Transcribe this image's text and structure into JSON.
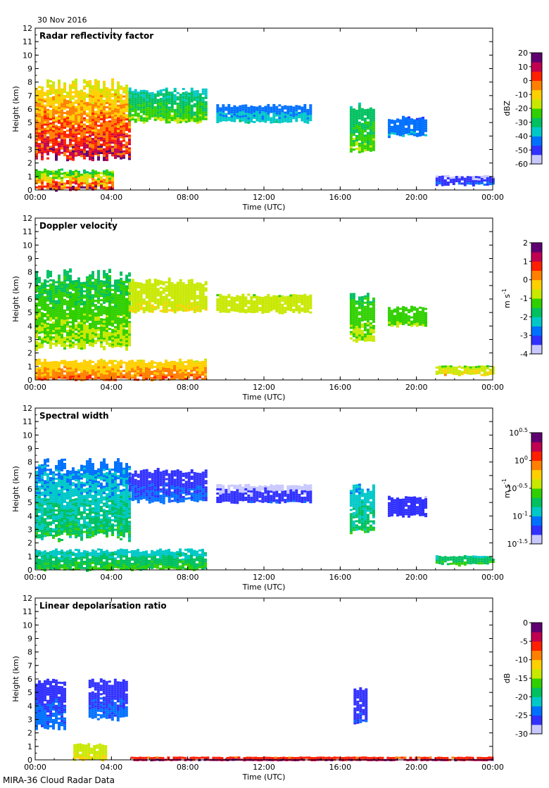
{
  "date": "30 Nov 2016",
  "footer": "MIRA-36 Cloud Radar Data",
  "colors": {
    "axis": "#000000",
    "background": "#ffffff",
    "colormap": [
      "#c8c8ff",
      "#3030ff",
      "#0070ff",
      "#00c8c8",
      "#00c060",
      "#30d000",
      "#c8e800",
      "#ffd000",
      "#ff8000",
      "#ff2000",
      "#c00050",
      "#600070"
    ]
  },
  "chart_data": [
    {
      "type": "heatmap",
      "title": "Radar reflectivity factor",
      "xlabel": "Time (UTC)",
      "ylabel": "Height (km)",
      "xlim": [
        0,
        24
      ],
      "ylim": [
        0,
        12
      ],
      "x_ticks": [
        "00:00",
        "04:00",
        "08:00",
        "12:00",
        "16:00",
        "20:00",
        "00:00"
      ],
      "y_ticks": [
        "0",
        "1",
        "2",
        "3",
        "4",
        "5",
        "6",
        "7",
        "8",
        "9",
        "10",
        "11",
        "12"
      ],
      "colorbar": {
        "label": "dBZ",
        "range": [
          -60,
          20
        ],
        "ticks": [
          "20",
          "10",
          "0",
          "-10",
          "-20",
          "-30",
          "-40",
          "-50",
          "-60"
        ]
      },
      "regions": [
        {
          "t": [
            0,
            4.9
          ],
          "h": [
            2.2,
            8.3
          ],
          "v": [
            -30,
            10
          ],
          "desc": "deep ice cloud 00-05 UTC"
        },
        {
          "t": [
            4.9,
            9.0
          ],
          "h": [
            5.0,
            7.6
          ],
          "v": [
            -45,
            -20
          ],
          "desc": "ice cloud top 05-09 UTC"
        },
        {
          "t": [
            9.5,
            14.5
          ],
          "h": [
            5.0,
            6.4
          ],
          "v": [
            -50,
            -35
          ],
          "desc": "thin ice layer 10-14 UTC"
        },
        {
          "t": [
            16.5,
            17.8
          ],
          "h": [
            2.7,
            6.5
          ],
          "v": [
            -40,
            -20
          ],
          "desc": "cell near 17 UTC"
        },
        {
          "t": [
            18.5,
            20.5
          ],
          "h": [
            4.0,
            5.5
          ],
          "v": [
            -50,
            -40
          ],
          "desc": "patches 19-20 UTC"
        },
        {
          "t": [
            0,
            4.0
          ],
          "h": [
            0,
            1.6
          ],
          "v": [
            -50,
            10
          ],
          "desc": "low-level echo 00-04 UTC"
        },
        {
          "t": [
            21.0,
            24.0
          ],
          "h": [
            0.4,
            1.1
          ],
          "v": [
            -60,
            -45
          ],
          "desc": "low cloud 21-24 UTC"
        }
      ]
    },
    {
      "type": "heatmap",
      "title": "Doppler velocity",
      "xlabel": "Time (UTC)",
      "ylabel": "Height (km)",
      "xlim": [
        0,
        24
      ],
      "ylim": [
        0,
        12
      ],
      "x_ticks": [
        "00:00",
        "04:00",
        "08:00",
        "12:00",
        "16:00",
        "20:00",
        "00:00"
      ],
      "y_ticks": [
        "0",
        "1",
        "2",
        "3",
        "4",
        "5",
        "6",
        "7",
        "8",
        "9",
        "10",
        "11",
        "12"
      ],
      "colorbar": {
        "label": "m s",
        "label_superscript": "-1",
        "range": [
          -4,
          2
        ],
        "ticks": [
          "2",
          "1",
          "0",
          "-1",
          "-2",
          "-3",
          "-4"
        ]
      },
      "regions": [
        {
          "t": [
            0,
            4.9
          ],
          "h": [
            2.2,
            8.3
          ],
          "v": [
            -2.2,
            -0.8
          ],
          "desc": "falling ice 00-05 UTC"
        },
        {
          "t": [
            4.9,
            9.0
          ],
          "h": [
            5.0,
            7.6
          ],
          "v": [
            -1.2,
            -0.5
          ],
          "desc": "ice cloud top 05-09 UTC"
        },
        {
          "t": [
            9.5,
            14.5
          ],
          "h": [
            5.0,
            6.4
          ],
          "v": [
            -1.2,
            -0.6
          ],
          "desc": "thin ice layer 10-14 UTC"
        },
        {
          "t": [
            16.5,
            17.8
          ],
          "h": [
            2.7,
            6.5
          ],
          "v": [
            -2.0,
            -0.8
          ],
          "desc": "cell near 17 UTC"
        },
        {
          "t": [
            18.5,
            20.5
          ],
          "h": [
            4.0,
            5.5
          ],
          "v": [
            -1.5,
            -1.0
          ],
          "desc": "patches 19-20 UTC"
        },
        {
          "t": [
            0,
            9.0
          ],
          "h": [
            0,
            1.6
          ],
          "v": [
            -1.0,
            0.5
          ],
          "desc": "low-level echo"
        },
        {
          "t": [
            21.0,
            24.0
          ],
          "h": [
            0.4,
            1.1
          ],
          "v": [
            -1.5,
            -0.2
          ],
          "desc": "low cloud 21-24 UTC"
        }
      ]
    },
    {
      "type": "heatmap",
      "title": "Spectral width",
      "xlabel": "Time (UTC)",
      "ylabel": "Height (km)",
      "xlim": [
        0,
        24
      ],
      "ylim": [
        0,
        12
      ],
      "x_ticks": [
        "00:00",
        "04:00",
        "08:00",
        "12:00",
        "16:00",
        "20:00",
        "00:00"
      ],
      "y_ticks": [
        "0",
        "1",
        "2",
        "3",
        "4",
        "5",
        "6",
        "7",
        "8",
        "9",
        "10",
        "11",
        "12"
      ],
      "colorbar": {
        "label": "m s",
        "label_superscript": "-1",
        "scale": "log",
        "range": [
          -1.5,
          0.5
        ],
        "ticks": [
          "10^0.5",
          "10^0",
          "10^-0.5",
          "10^-1",
          "10^-1.5"
        ]
      },
      "regions": [
        {
          "t": [
            0,
            4.9
          ],
          "h": [
            2.2,
            8.3
          ],
          "v": [
            -1.3,
            -0.7
          ],
          "desc": "ice cloud 00-05 UTC"
        },
        {
          "t": [
            4.9,
            9.0
          ],
          "h": [
            5.0,
            7.6
          ],
          "v": [
            -1.4,
            -1.1
          ],
          "desc": "ice cloud top 05-09 UTC"
        },
        {
          "t": [
            9.5,
            14.5
          ],
          "h": [
            5.0,
            6.4
          ],
          "v": [
            -1.5,
            -1.2
          ],
          "desc": "thin ice layer 10-14 UTC"
        },
        {
          "t": [
            16.5,
            17.8
          ],
          "h": [
            2.7,
            6.5
          ],
          "v": [
            -1.2,
            -0.7
          ],
          "desc": "cell near 17 UTC"
        },
        {
          "t": [
            18.5,
            20.5
          ],
          "h": [
            4.0,
            5.5
          ],
          "v": [
            -1.4,
            -1.2
          ],
          "desc": "patches 19-20 UTC"
        },
        {
          "t": [
            0,
            9.0
          ],
          "h": [
            0,
            1.6
          ],
          "v": [
            -1.1,
            -0.6
          ],
          "desc": "low-level echo"
        },
        {
          "t": [
            21.0,
            24.0
          ],
          "h": [
            0.4,
            1.1
          ],
          "v": [
            -1.0,
            -0.6
          ],
          "desc": "low cloud 21-24 UTC"
        }
      ]
    },
    {
      "type": "heatmap",
      "title": "Linear depolarisation ratio",
      "xlabel": "Time (UTC)",
      "ylabel": "Height (km)",
      "xlim": [
        0,
        24
      ],
      "ylim": [
        0,
        12
      ],
      "x_ticks": [
        "00:00",
        "04:00",
        "08:00",
        "12:00",
        "16:00",
        "20:00",
        "00:00"
      ],
      "y_ticks": [
        "0",
        "1",
        "2",
        "3",
        "4",
        "5",
        "6",
        "7",
        "8",
        "9",
        "10",
        "11",
        "12"
      ],
      "colorbar": {
        "label": "dB",
        "range": [
          -30,
          0
        ],
        "ticks": [
          "0",
          "-5",
          "-10",
          "-15",
          "-20",
          "-25",
          "-30"
        ]
      },
      "regions": [
        {
          "t": [
            0,
            1.6
          ],
          "h": [
            2.3,
            6.3
          ],
          "v": [
            -28,
            -24
          ],
          "desc": "ice 00-01.5 UTC"
        },
        {
          "t": [
            2.8,
            4.8
          ],
          "h": [
            3.0,
            6.1
          ],
          "v": [
            -28,
            -24
          ],
          "desc": "ice 03-05 UTC"
        },
        {
          "t": [
            16.7,
            17.4
          ],
          "h": [
            2.7,
            5.6
          ],
          "v": [
            -28,
            -25
          ],
          "desc": "ice near 17 UTC"
        },
        {
          "t": [
            2.0,
            3.7
          ],
          "h": [
            0,
            1.3
          ],
          "v": [
            -16,
            -12
          ],
          "desc": "low echo 02-04 UTC"
        },
        {
          "t": [
            5.0,
            24.0
          ],
          "h": [
            0,
            0.25
          ],
          "v": [
            -10,
            -2
          ],
          "desc": "near-surface clutter"
        }
      ]
    }
  ]
}
